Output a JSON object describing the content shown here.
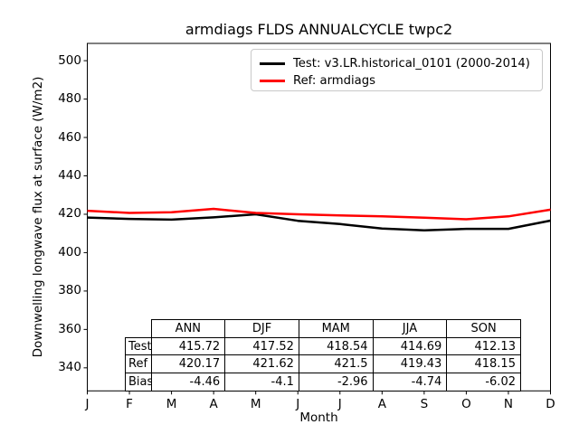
{
  "title": "armdiags FLDS ANNUALCYCLE twpc2",
  "axes": {
    "xlabel": "Month",
    "ylabel": "Downwelling longwave flux at surface (W/m2)",
    "yticks": [
      340,
      360,
      380,
      400,
      420,
      440,
      460,
      480,
      500
    ],
    "xtick_labels": [
      "J",
      "F",
      "M",
      "A",
      "M",
      "J",
      "J",
      "A",
      "S",
      "O",
      "N",
      "D"
    ]
  },
  "legend": {
    "items": [
      {
        "label": "Test: v3.LR.historical_0101 (2000-2014)",
        "color": "#000000"
      },
      {
        "label": "Ref: armdiags",
        "color": "#ff0000"
      }
    ]
  },
  "chart_data": {
    "type": "line",
    "title": "armdiags FLDS ANNUALCYCLE twpc2",
    "xlabel": "Month",
    "ylabel": "Downwelling longwave flux at surface (W/m2)",
    "x": [
      "J",
      "F",
      "M",
      "A",
      "M",
      "J",
      "J",
      "A",
      "S",
      "O",
      "N",
      "D"
    ],
    "series": [
      {
        "name": "Test: v3.LR.historical_0101 (2000-2014)",
        "color": "#000000",
        "values": [
          418.3,
          417.6,
          417.2,
          418.4,
          420.0,
          416.6,
          414.9,
          412.6,
          411.6,
          412.4,
          412.4,
          416.7
        ]
      },
      {
        "name": "Ref: armdiags",
        "color": "#ff0000",
        "values": [
          421.8,
          420.7,
          421.0,
          422.8,
          420.7,
          420.0,
          419.4,
          418.9,
          418.2,
          417.4,
          418.9,
          422.4
        ]
      }
    ],
    "ylim": [
      328,
      509
    ],
    "grid": false,
    "legend_position": "upper right"
  },
  "table": {
    "col_headers": [
      "ANN",
      "DJF",
      "MAM",
      "JJA",
      "SON"
    ],
    "row_labels": [
      "Test",
      "Ref",
      "Bias"
    ],
    "rows": [
      [
        "415.72",
        "417.52",
        "418.54",
        "414.69",
        "412.13"
      ],
      [
        "420.17",
        "421.62",
        "421.5",
        "419.43",
        "418.15"
      ],
      [
        "-4.46",
        "-4.1",
        "-2.96",
        "-4.74",
        "-6.02"
      ]
    ]
  }
}
